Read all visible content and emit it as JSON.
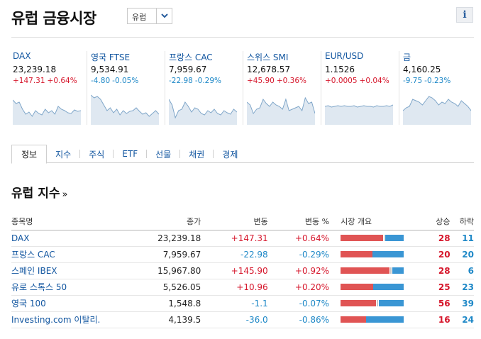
{
  "header": {
    "title": "유럽 금융시장",
    "region_select": "유럽",
    "info_label": "i"
  },
  "tiles": [
    {
      "name": "DAX",
      "price": "23,239.18",
      "chg": "+147.31",
      "pct": "+0.64%",
      "dir": "pos",
      "spark": [
        15,
        20,
        18,
        28,
        35,
        32,
        38,
        30,
        34,
        36,
        28,
        33,
        30,
        35,
        24,
        28,
        30,
        33,
        34,
        29,
        31,
        30
      ]
    },
    {
      "name": "영국 FTSE",
      "price": "9,534.91",
      "chg": "-4.80",
      "pct": "-0.05%",
      "dir": "neg",
      "spark": [
        8,
        12,
        10,
        14,
        22,
        30,
        26,
        33,
        28,
        36,
        30,
        34,
        31,
        30,
        26,
        31,
        35,
        33,
        38,
        34,
        30,
        35
      ]
    },
    {
      "name": "프랑스 CAC",
      "price": "7,959.67",
      "chg": "-22.98",
      "pct": "-0.29%",
      "dir": "neg",
      "spark": [
        14,
        22,
        40,
        30,
        28,
        18,
        24,
        32,
        26,
        28,
        34,
        36,
        30,
        33,
        28,
        34,
        36,
        30,
        33,
        35,
        28,
        32
      ]
    },
    {
      "name": "스위스 SMI",
      "price": "12,678.57",
      "chg": "+45.90",
      "pct": "+0.36%",
      "dir": "pos",
      "spark": [
        18,
        22,
        34,
        28,
        26,
        14,
        20,
        24,
        18,
        22,
        24,
        28,
        14,
        30,
        28,
        26,
        24,
        30,
        12,
        20,
        18,
        34
      ]
    },
    {
      "name": "EUR/USD",
      "price": "1.1526",
      "chg": "+0.0005",
      "pct": "+0.04%",
      "dir": "pos",
      "spark": [
        24,
        23,
        25,
        24,
        23,
        24,
        23,
        24,
        24,
        23,
        25,
        24,
        23,
        24,
        24,
        25,
        23,
        24,
        24,
        23,
        24,
        22
      ]
    },
    {
      "name": "금",
      "price": "4,160.25",
      "chg": "-9.75",
      "pct": "-0.23%",
      "dir": "neg",
      "spark": [
        30,
        26,
        24,
        14,
        16,
        18,
        22,
        16,
        10,
        12,
        16,
        22,
        18,
        20,
        14,
        18,
        20,
        24,
        16,
        20,
        24,
        30
      ]
    }
  ],
  "tabs": [
    "정보",
    "지수",
    "주식",
    "ETF",
    "선물",
    "채권",
    "경제"
  ],
  "section": {
    "title": "유럽 지수",
    "arrow": "»"
  },
  "table": {
    "headers": {
      "name": "종목명",
      "last": "종가",
      "chg": "변동",
      "pct": "변동 %",
      "overview": "시장 개요",
      "up": "상승",
      "down": "하락"
    },
    "rows": [
      {
        "name": "DAX",
        "last": "23,239.18",
        "chg": "+147.31",
        "pct": "+0.64%",
        "dir": "pos",
        "up": "28",
        "down": "11",
        "bar": [
          0.67,
          0.03,
          0.3
        ]
      },
      {
        "name": "프랑스 CAC",
        "last": "7,959.67",
        "chg": "-22.98",
        "pct": "-0.29%",
        "dir": "neg",
        "up": "20",
        "down": "20",
        "bar": [
          0.5,
          0.0,
          0.5
        ]
      },
      {
        "name": "스페인 IBEX",
        "last": "15,967.80",
        "chg": "+145.90",
        "pct": "+0.92%",
        "dir": "pos",
        "up": "28",
        "down": "6",
        "bar": [
          0.78,
          0.04,
          0.18
        ]
      },
      {
        "name": "유로 스톡스 50",
        "last": "5,526.05",
        "chg": "+10.96",
        "pct": "+0.20%",
        "dir": "pos",
        "up": "25",
        "down": "23",
        "bar": [
          0.52,
          0.0,
          0.48
        ]
      },
      {
        "name": "영국 100",
        "last": "1,548.8",
        "chg": "-1.1",
        "pct": "-0.07%",
        "dir": "neg",
        "up": "56",
        "down": "39",
        "bar": [
          0.56,
          0.04,
          0.4
        ]
      },
      {
        "name": "Investing.com 이탈리.",
        "last": "4,139.5",
        "chg": "-36.0",
        "pct": "-0.86%",
        "dir": "neg",
        "up": "16",
        "down": "24",
        "bar": [
          0.4,
          0.0,
          0.6
        ]
      }
    ]
  }
}
